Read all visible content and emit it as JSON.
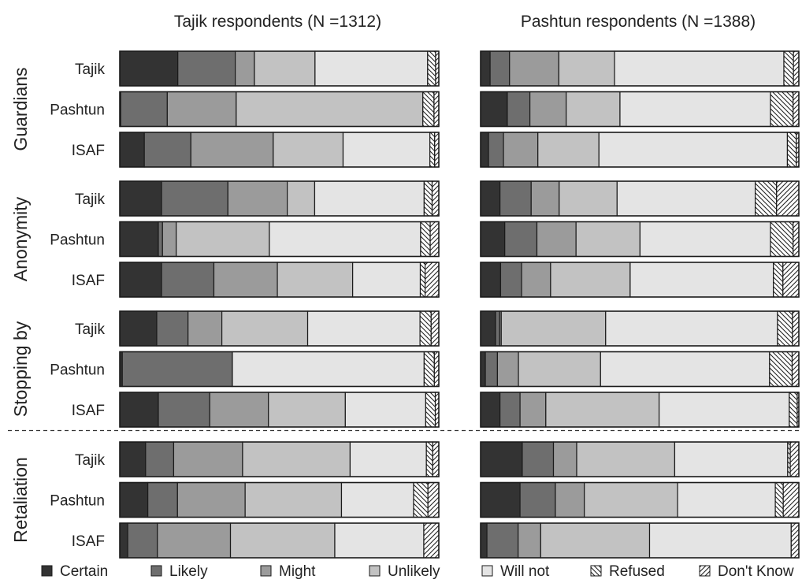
{
  "chart_data": {
    "type": "bar",
    "stacked": "horizontal-percent",
    "panels": [
      {
        "title": "Tajik respondents (N =1312)"
      },
      {
        "title": "Pashtun respondents (N =1388)"
      }
    ],
    "groups": [
      "Guardians",
      "Anonymity",
      "Stopping by",
      "Retaliation"
    ],
    "row_labels": [
      "Tajik",
      "Pashtun",
      "ISAF"
    ],
    "categories": [
      "Certain",
      "Likely",
      "Might",
      "Unlikely",
      "Will not",
      "Refused",
      "Don't Know"
    ],
    "colors": [
      "#333333",
      "#6e6e6e",
      "#9b9b9b",
      "#c2c2c2",
      "#e4e4e4",
      "#ffffff",
      "#ffffff"
    ],
    "patterns": [
      "solid",
      "solid",
      "solid",
      "solid",
      "solid",
      "backslash-hatch",
      "forward-hatch"
    ],
    "xlim": [
      0,
      100
    ],
    "separator_after_group": "Stopping by",
    "values": [
      [
        [
          [
            18.2,
            18.0,
            6.0,
            19.0,
            35.3,
            2.5,
            1.0
          ],
          [
            0.3,
            14.6,
            21.6,
            58.5,
            0.0,
            3.5,
            1.5
          ],
          [
            7.7,
            14.6,
            25.8,
            21.9,
            27.2,
            1.5,
            1.3
          ]
        ],
        [
          [
            13.1,
            20.8,
            18.6,
            8.6,
            34.3,
            2.5,
            2.1
          ],
          [
            12.1,
            1.3,
            4.3,
            29.2,
            47.4,
            3.0,
            2.7
          ],
          [
            13.1,
            16.4,
            19.9,
            23.6,
            21.2,
            1.5,
            4.3
          ]
        ],
        [
          [
            11.6,
            9.8,
            10.6,
            26.9,
            35.2,
            3.5,
            2.4
          ],
          [
            0.8,
            34.5,
            0.0,
            0.0,
            60.1,
            3.2,
            1.4
          ],
          [
            12.1,
            16.1,
            18.4,
            24.1,
            25.2,
            3.0,
            1.1
          ]
        ],
        [
          [
            8.1,
            8.8,
            21.6,
            33.7,
            23.9,
            2.0,
            1.9
          ],
          [
            8.8,
            9.3,
            21.2,
            30.2,
            22.6,
            4.5,
            3.4
          ],
          [
            2.5,
            9.3,
            22.9,
            32.7,
            27.9,
            0.0,
            4.7
          ]
        ]
      ],
      [
        [
          [
            3.0,
            6.1,
            15.5,
            17.5,
            53.2,
            3.0,
            1.7
          ],
          [
            8.4,
            7.1,
            11.4,
            16.9,
            47.3,
            7.1,
            1.8
          ],
          [
            2.5,
            4.7,
            10.8,
            19.2,
            59.2,
            2.8,
            0.8
          ]
        ],
        [
          [
            6.1,
            9.8,
            8.8,
            18.2,
            43.4,
            6.7,
            7.0
          ],
          [
            7.6,
            10.1,
            12.3,
            20.1,
            41.0,
            7.1,
            1.8
          ],
          [
            6.3,
            6.6,
            9.1,
            25.0,
            45.0,
            3.0,
            5.0
          ]
        ],
        [
          [
            4.7,
            1.3,
            0.5,
            32.8,
            54.0,
            4.7,
            2.0
          ],
          [
            1.5,
            3.8,
            6.6,
            25.8,
            53.1,
            7.1,
            2.1
          ],
          [
            6.1,
            6.3,
            8.1,
            35.6,
            40.9,
            2.5,
            0.5
          ]
        ],
        [
          [
            13.1,
            9.8,
            7.3,
            30.8,
            35.5,
            0.8,
            2.7
          ],
          [
            12.4,
            11.1,
            9.1,
            29.3,
            30.7,
            2.5,
            4.9
          ],
          [
            2.0,
            9.8,
            7.1,
            34.2,
            44.5,
            0.0,
            2.4
          ]
        ]
      ]
    ]
  }
}
